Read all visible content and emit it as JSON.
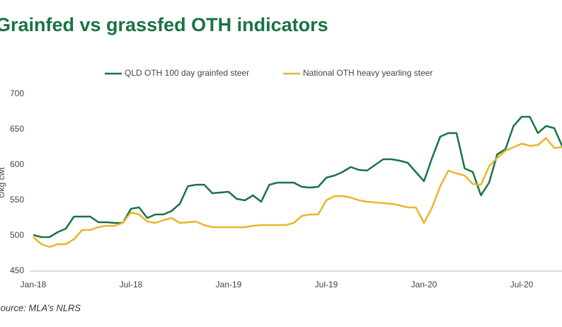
{
  "chart_data": {
    "type": "line",
    "title": "Grainfed vs grassfed OTH indicators",
    "y_label": "c/kg cwt",
    "source": "Source: MLA’s NLRS",
    "categories": [
      "Jan-18",
      null,
      null,
      null,
      null,
      null,
      null,
      null,
      null,
      null,
      null,
      null,
      "Jul-18",
      null,
      null,
      null,
      null,
      null,
      null,
      null,
      null,
      null,
      null,
      null,
      "Jan-19",
      null,
      null,
      null,
      null,
      null,
      null,
      null,
      null,
      null,
      null,
      null,
      "Jul-19",
      null,
      null,
      null,
      null,
      null,
      null,
      null,
      null,
      null,
      null,
      null,
      "Jan-20",
      null,
      null,
      null,
      null,
      null,
      null,
      null,
      null,
      null,
      null,
      null,
      "Jul-20",
      null,
      null,
      null,
      null,
      null
    ],
    "series": [
      {
        "name": "QLD OTH 100 day grainfed steer",
        "color": "#1a7343",
        "values": [
          501,
          498,
          498,
          505,
          510,
          527,
          527,
          527,
          519,
          519,
          518,
          518,
          538,
          540,
          525,
          530,
          530,
          535,
          545,
          570,
          572,
          572,
          560,
          561,
          562,
          552,
          550,
          557,
          548,
          572,
          575,
          575,
          575,
          569,
          568,
          569,
          582,
          585,
          590,
          597,
          593,
          592,
          600,
          608,
          608,
          606,
          603,
          590,
          577,
          610,
          640,
          645,
          645,
          595,
          590,
          557,
          575,
          615,
          622,
          655,
          668,
          668,
          645,
          655,
          652,
          626
        ]
      },
      {
        "name": "National OTH heavy yearling steer",
        "color": "#e8b52e",
        "values": [
          498,
          488,
          484,
          488,
          488,
          495,
          508,
          508,
          512,
          514,
          514,
          518,
          533,
          530,
          520,
          518,
          522,
          525,
          518,
          519,
          520,
          515,
          512,
          512,
          512,
          512,
          512,
          514,
          515,
          515,
          515,
          515,
          518,
          528,
          530,
          530,
          550,
          556,
          556,
          554,
          550,
          548,
          547,
          546,
          545,
          543,
          540,
          540,
          518,
          540,
          570,
          592,
          588,
          585,
          573,
          572,
          598,
          610,
          620,
          625,
          630,
          627,
          628,
          638,
          624,
          625
        ]
      }
    ],
    "ylim": [
      450,
      700
    ],
    "yticks": [
      450,
      500,
      550,
      600,
      650,
      700
    ],
    "legend": "top",
    "grid": false
  }
}
